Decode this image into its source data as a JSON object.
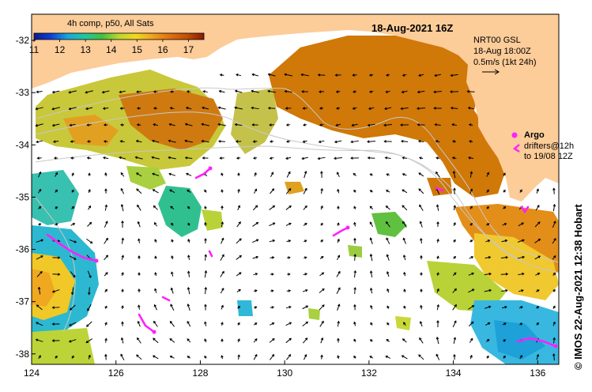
{
  "title": "18-Aug-2021 16Z",
  "colorbar": {
    "caption": "4h comp, p50, All Sats",
    "ticks": [
      "11",
      "12",
      "13",
      "14",
      "15",
      "16",
      "17"
    ],
    "min": 11,
    "max": 17.6,
    "stops": [
      "#0a1a8c",
      "#1040d8",
      "#18a8d8",
      "#20c8a0",
      "#40c040",
      "#b8d830",
      "#f0d820",
      "#f0a020",
      "#e07010",
      "#c05008",
      "#8a1a00"
    ]
  },
  "current_legend": {
    "line1": "NRT00 GSL",
    "line2": "18-Aug 18:00Z",
    "line3": "0.5m/s (1kt 24h)"
  },
  "argo_legend": {
    "label": "Argo",
    "drifter_line1": "drifters@12h",
    "drifter_line2": "to 19/08 12Z"
  },
  "credit": "© IMOS 22-Aug-2021 12:38 Hobart",
  "axes": {
    "x_ticks": [
      "124",
      "126",
      "128",
      "130",
      "132",
      "134",
      "136"
    ],
    "y_ticks": [
      "-32",
      "-33",
      "-34",
      "-35",
      "-36",
      "-37",
      "-38"
    ],
    "lon_range": [
      124,
      136.5
    ],
    "lat_range": [
      -31.5,
      -38.2
    ]
  },
  "colors": {
    "land": "#fccc99",
    "argo": "#ff20ff",
    "arrow": "#000000",
    "isobath": "#c8c8c8"
  }
}
